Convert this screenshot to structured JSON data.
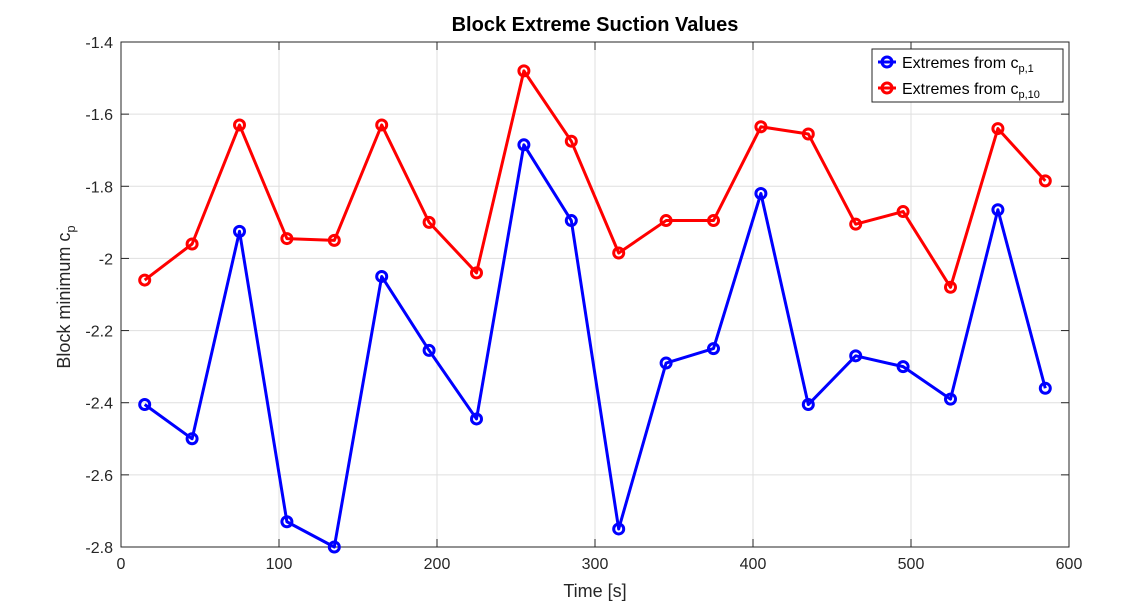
{
  "chart_data": {
    "type": "line",
    "title": "Block Extreme Suction Values",
    "xlabel": "Time [s]",
    "ylabel": {
      "base": "Block minimum c",
      "sub": "p"
    },
    "xlim": [
      0,
      600
    ],
    "ylim": [
      -2.8,
      -1.4
    ],
    "xticks": [
      0,
      100,
      200,
      300,
      400,
      500,
      600
    ],
    "yticks": [
      -2.8,
      -2.6,
      -2.4,
      -2.2,
      -2,
      -1.8,
      -1.6,
      -1.4
    ],
    "xtick_labels": [
      "0",
      "100",
      "200",
      "300",
      "400",
      "500",
      "600"
    ],
    "ytick_labels": [
      "-2.8",
      "-2.6",
      "-2.4",
      "-2.2",
      "-2",
      "-1.8",
      "-1.6",
      "-1.4"
    ],
    "grid": true,
    "legend_position": "top-right",
    "x": [
      15,
      45,
      75,
      105,
      135,
      165,
      195,
      225,
      255,
      285,
      315,
      345,
      375,
      405,
      435,
      465,
      495,
      525,
      555,
      585
    ],
    "series": [
      {
        "name": "Extremes from c",
        "name_sub": "p,1",
        "color": "#0000ff",
        "marker": "circle",
        "values": [
          -2.405,
          -2.5,
          -1.925,
          -2.73,
          -2.8,
          -2.05,
          -2.255,
          -2.445,
          -1.685,
          -1.895,
          -2.75,
          -2.29,
          -2.25,
          -1.82,
          -2.405,
          -2.27,
          -2.3,
          -2.39,
          -1.865,
          -2.36
        ]
      },
      {
        "name": "Extremes from c",
        "name_sub": "p,10",
        "color": "#ff0000",
        "marker": "circle",
        "values": [
          -2.06,
          -1.96,
          -1.63,
          -1.945,
          -1.95,
          -1.63,
          -1.9,
          -2.04,
          -1.48,
          -1.675,
          -1.985,
          -1.895,
          -1.895,
          -1.635,
          -1.655,
          -1.905,
          -1.87,
          -2.08,
          -1.64,
          -1.785
        ]
      }
    ]
  }
}
